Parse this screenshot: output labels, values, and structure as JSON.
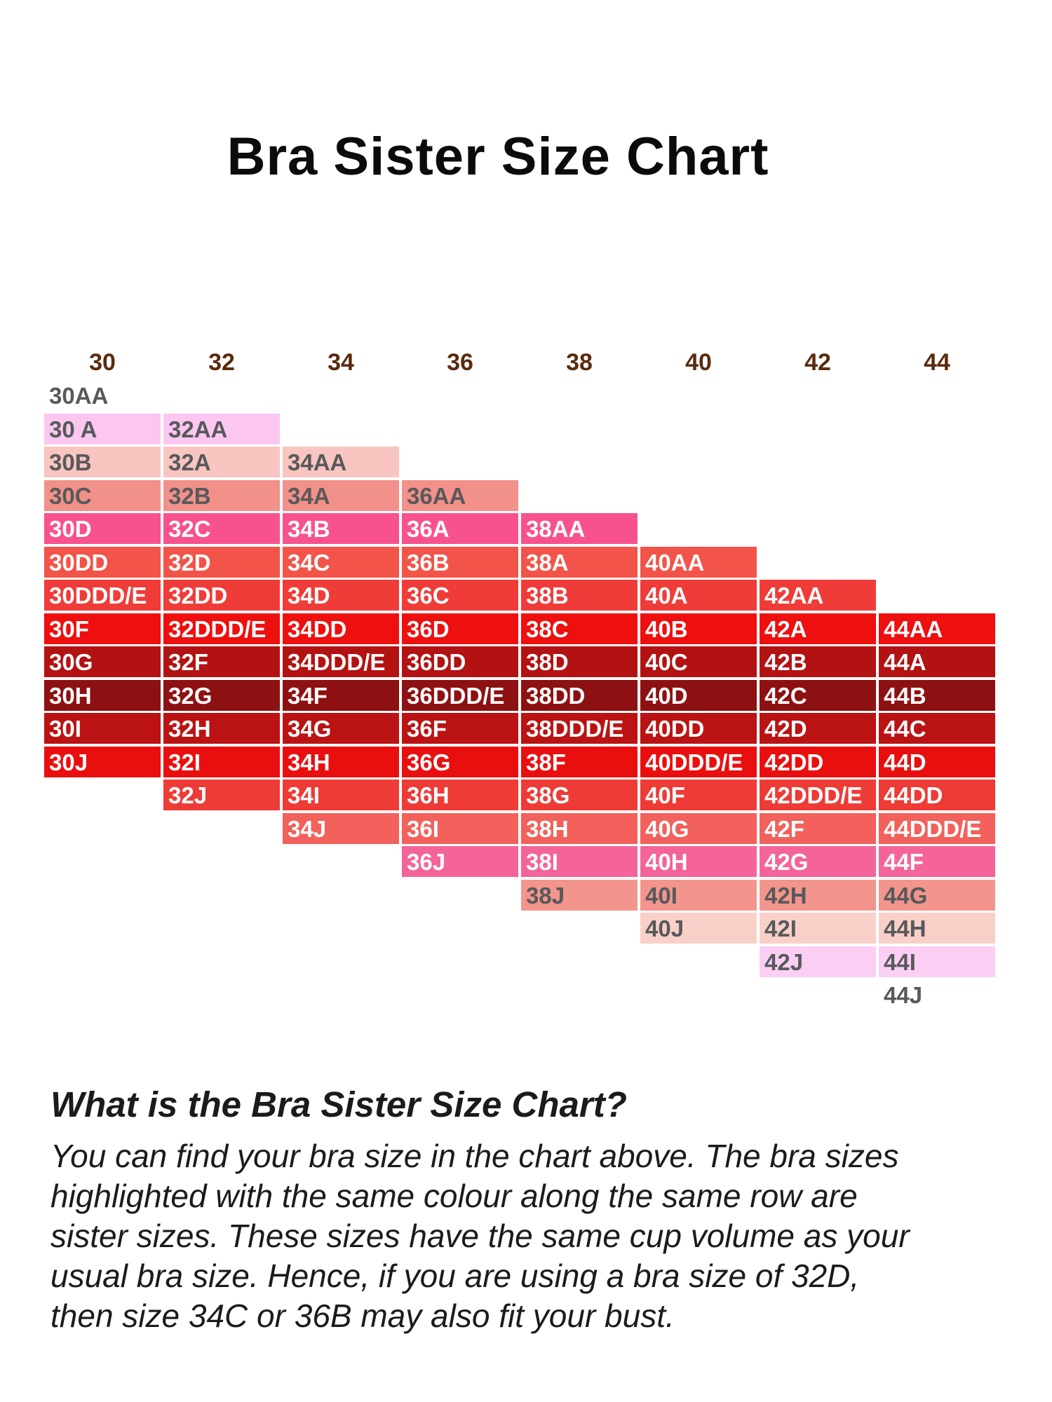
{
  "title": "Bra Sister Size Chart",
  "chart_data": {
    "type": "table",
    "title": "Bra Sister Size Chart",
    "band_headers": [
      "30",
      "32",
      "34",
      "36",
      "38",
      "40",
      "42",
      "44"
    ],
    "cup_order": [
      "AA",
      "A",
      "B",
      "C",
      "D",
      "DD",
      "DDD/E",
      "F",
      "G",
      "H",
      "I",
      "J"
    ],
    "header_text_color": "#5a2b0e",
    "gray_text_color": "#58595b",
    "white_text_color": "#ffffff",
    "rows": [
      {
        "bg": "",
        "fg": "#58595b",
        "cells": [
          {
            "col": 0,
            "label": "30AA"
          }
        ]
      },
      {
        "bg": "#fbc7f0",
        "fg": "#58595b",
        "cells": [
          {
            "col": 0,
            "label": "30 A"
          },
          {
            "col": 1,
            "label": "32AA"
          }
        ]
      },
      {
        "bg": "#f8c5c1",
        "fg": "#58595b",
        "cells": [
          {
            "col": 0,
            "label": "30B"
          },
          {
            "col": 1,
            "label": "32A"
          },
          {
            "col": 2,
            "label": "34AA"
          }
        ]
      },
      {
        "bg": "#f2908a",
        "fg": "#58595b",
        "cells": [
          {
            "col": 0,
            "label": "30C"
          },
          {
            "col": 1,
            "label": "32B"
          },
          {
            "col": 2,
            "label": "34A"
          },
          {
            "col": 3,
            "label": "36AA"
          }
        ]
      },
      {
        "bg": "#f8528e",
        "fg": "#ffffff",
        "cells": [
          {
            "col": 0,
            "label": "30D"
          },
          {
            "col": 1,
            "label": "32C"
          },
          {
            "col": 2,
            "label": "34B"
          },
          {
            "col": 3,
            "label": "36A"
          },
          {
            "col": 4,
            "label": "38AA"
          }
        ]
      },
      {
        "bg": "#f25449",
        "fg": "#ffffff",
        "cells": [
          {
            "col": 0,
            "label": "30DD"
          },
          {
            "col": 1,
            "label": "32D"
          },
          {
            "col": 2,
            "label": "34C"
          },
          {
            "col": 3,
            "label": "36B"
          },
          {
            "col": 4,
            "label": "38A"
          },
          {
            "col": 5,
            "label": "40AA"
          }
        ]
      },
      {
        "bg": "#ef3c38",
        "fg": "#ffffff",
        "cells": [
          {
            "col": 0,
            "label": "30DDD/E"
          },
          {
            "col": 1,
            "label": "32DD"
          },
          {
            "col": 2,
            "label": "34D"
          },
          {
            "col": 3,
            "label": "36C"
          },
          {
            "col": 4,
            "label": "38B"
          },
          {
            "col": 5,
            "label": "40A"
          },
          {
            "col": 6,
            "label": "42AA"
          }
        ]
      },
      {
        "bg": "#ee0f0f",
        "fg": "#ffffff",
        "cells": [
          {
            "col": 0,
            "label": "30F"
          },
          {
            "col": 1,
            "label": "32DDD/E"
          },
          {
            "col": 2,
            "label": "34DD"
          },
          {
            "col": 3,
            "label": "36D"
          },
          {
            "col": 4,
            "label": "38C"
          },
          {
            "col": 5,
            "label": "40B"
          },
          {
            "col": 6,
            "label": "42A"
          },
          {
            "col": 7,
            "label": "44AA"
          }
        ]
      },
      {
        "bg": "#b31212",
        "fg": "#ffffff",
        "cells": [
          {
            "col": 0,
            "label": "30G"
          },
          {
            "col": 1,
            "label": "32F"
          },
          {
            "col": 2,
            "label": "34DDD/E"
          },
          {
            "col": 3,
            "label": "36DD"
          },
          {
            "col": 4,
            "label": "38D"
          },
          {
            "col": 5,
            "label": "40C"
          },
          {
            "col": 6,
            "label": "42B"
          },
          {
            "col": 7,
            "label": "44A"
          }
        ]
      },
      {
        "bg": "#8d1112",
        "fg": "#ffffff",
        "cells": [
          {
            "col": 0,
            "label": "30H"
          },
          {
            "col": 1,
            "label": "32G"
          },
          {
            "col": 2,
            "label": "34F"
          },
          {
            "col": 3,
            "label": "36DDD/E"
          },
          {
            "col": 4,
            "label": "38DD"
          },
          {
            "col": 5,
            "label": "40D"
          },
          {
            "col": 6,
            "label": "42C"
          },
          {
            "col": 7,
            "label": "44B"
          }
        ]
      },
      {
        "bg": "#bb1313",
        "fg": "#ffffff",
        "cells": [
          {
            "col": 0,
            "label": "30I"
          },
          {
            "col": 1,
            "label": "32H"
          },
          {
            "col": 2,
            "label": "34G"
          },
          {
            "col": 3,
            "label": "36F"
          },
          {
            "col": 4,
            "label": "38DDD/E"
          },
          {
            "col": 5,
            "label": "40DD"
          },
          {
            "col": 6,
            "label": "42D"
          },
          {
            "col": 7,
            "label": "44C"
          }
        ]
      },
      {
        "bg": "#ea0f0f",
        "fg": "#ffffff",
        "cells": [
          {
            "col": 0,
            "label": "30J"
          },
          {
            "col": 1,
            "label": "32I"
          },
          {
            "col": 2,
            "label": "34H"
          },
          {
            "col": 3,
            "label": "36G"
          },
          {
            "col": 4,
            "label": "38F"
          },
          {
            "col": 5,
            "label": "40DDD/E"
          },
          {
            "col": 6,
            "label": "42DD"
          },
          {
            "col": 7,
            "label": "44D"
          }
        ]
      },
      {
        "bg": "#ee3b36",
        "fg": "#ffffff",
        "cells": [
          {
            "col": 1,
            "label": "32J"
          },
          {
            "col": 2,
            "label": "34I"
          },
          {
            "col": 3,
            "label": "36H"
          },
          {
            "col": 4,
            "label": "38G"
          },
          {
            "col": 5,
            "label": "40F"
          },
          {
            "col": 6,
            "label": "42DDD/E"
          },
          {
            "col": 7,
            "label": "44DD"
          }
        ]
      },
      {
        "bg": "#f2615b",
        "fg": "#ffffff",
        "cells": [
          {
            "col": 2,
            "label": "34J"
          },
          {
            "col": 3,
            "label": "36I"
          },
          {
            "col": 4,
            "label": "38H"
          },
          {
            "col": 5,
            "label": "40G"
          },
          {
            "col": 6,
            "label": "42F"
          },
          {
            "col": 7,
            "label": "44DDD/E"
          }
        ]
      },
      {
        "bg": "#f4649b",
        "fg": "#ffffff",
        "cells": [
          {
            "col": 3,
            "label": "36J"
          },
          {
            "col": 4,
            "label": "38I"
          },
          {
            "col": 5,
            "label": "40H"
          },
          {
            "col": 6,
            "label": "42G"
          },
          {
            "col": 7,
            "label": "44F"
          }
        ]
      },
      {
        "bg": "#f3958d",
        "fg": "#58595b",
        "cells": [
          {
            "col": 4,
            "label": "38J"
          },
          {
            "col": 5,
            "label": "40I"
          },
          {
            "col": 6,
            "label": "42H"
          },
          {
            "col": 7,
            "label": "44G"
          }
        ]
      },
      {
        "bg": "#f9d0c8",
        "fg": "#58595b",
        "cells": [
          {
            "col": 5,
            "label": "40J"
          },
          {
            "col": 6,
            "label": "42I"
          },
          {
            "col": 7,
            "label": "44H"
          }
        ]
      },
      {
        "bg": "#fbcff4",
        "fg": "#58595b",
        "cells": [
          {
            "col": 6,
            "label": "42J"
          },
          {
            "col": 7,
            "label": "44I"
          }
        ]
      },
      {
        "bg": "",
        "fg": "#58595b",
        "cells": [
          {
            "col": 7,
            "label": "44J"
          }
        ]
      }
    ]
  },
  "about": {
    "heading": "What is the Bra Sister Size Chart?",
    "lines": [
      "You can find your bra size in the chart above. The bra sizes",
      "highlighted with the same colour along the same row are",
      "sister sizes. These sizes have the same cup volume as your",
      "usual bra size. Hence, if you are using a bra size of 32D,",
      "then size 34C or 36B may also fit your bust."
    ]
  }
}
